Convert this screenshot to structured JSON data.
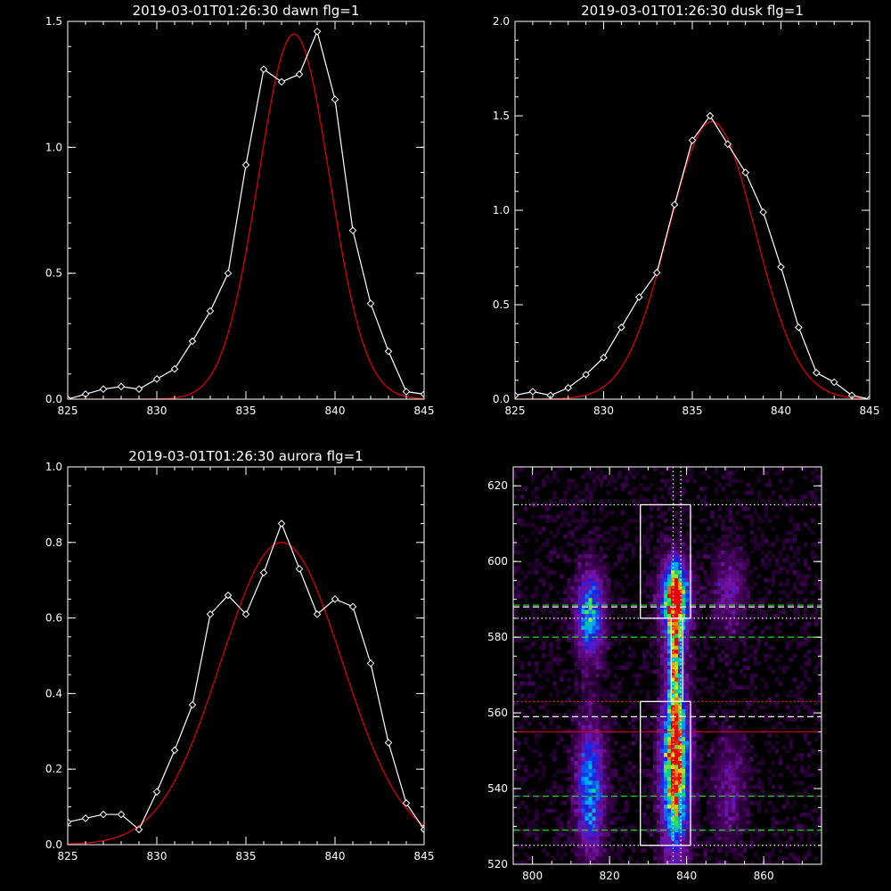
{
  "chart_data": [
    {
      "type": "line",
      "title": "2019-03-01T01:26:30 dawn flg=1",
      "xlabel": "",
      "ylabel": "",
      "xlim": [
        825,
        845
      ],
      "ylim": [
        0,
        1.5
      ],
      "xticks": [
        825,
        830,
        835,
        840,
        845
      ],
      "yticks": [
        0.0,
        0.5,
        1.0,
        1.5
      ],
      "xtick_labels": [
        "825",
        "830",
        "835",
        "840",
        "845"
      ],
      "ytick_labels": [
        "0.0",
        "0.5",
        "1.0",
        "1.5"
      ],
      "colors": {
        "data": "#ffffff",
        "fit": "#dd0000"
      },
      "series": [
        {
          "role": "data",
          "marker": "diamond",
          "x": [
            825,
            826,
            827,
            828,
            829,
            830,
            831,
            832,
            833,
            834,
            835,
            836,
            837,
            838,
            839,
            840,
            841,
            842,
            843,
            844,
            845
          ],
          "y": [
            0.0,
            0.02,
            0.04,
            0.05,
            0.04,
            0.08,
            0.12,
            0.23,
            0.35,
            0.5,
            0.93,
            1.31,
            1.26,
            1.29,
            1.46,
            1.19,
            0.67,
            0.38,
            0.19,
            0.03,
            0.02
          ]
        },
        {
          "role": "fit",
          "model": "gaussian",
          "amplitude": 1.45,
          "center": 837.7,
          "sigma": 2.0
        }
      ]
    },
    {
      "type": "line",
      "title": "2019-03-01T01:26:30 dusk flg=1",
      "xlabel": "",
      "ylabel": "",
      "xlim": [
        825,
        845
      ],
      "ylim": [
        0,
        2.0
      ],
      "xticks": [
        825,
        830,
        835,
        840,
        845
      ],
      "yticks": [
        0.0,
        0.5,
        1.0,
        1.5,
        2.0
      ],
      "xtick_labels": [
        "825",
        "830",
        "835",
        "840",
        "845"
      ],
      "ytick_labels": [
        "0.0",
        "0.5",
        "1.0",
        "1.5",
        "2.0"
      ],
      "colors": {
        "data": "#ffffff",
        "fit": "#dd0000"
      },
      "series": [
        {
          "role": "data",
          "marker": "diamond",
          "x": [
            825,
            826,
            827,
            828,
            829,
            830,
            831,
            832,
            833,
            834,
            835,
            836,
            837,
            838,
            839,
            840,
            841,
            842,
            843,
            844,
            845
          ],
          "y": [
            0.02,
            0.04,
            0.02,
            0.06,
            0.13,
            0.22,
            0.38,
            0.54,
            0.67,
            1.03,
            1.37,
            1.5,
            1.35,
            1.2,
            0.99,
            0.7,
            0.38,
            0.14,
            0.09,
            0.02,
            0.0
          ]
        },
        {
          "role": "fit",
          "model": "gaussian",
          "amplitude": 1.47,
          "center": 836.1,
          "sigma": 2.45
        }
      ]
    },
    {
      "type": "line",
      "title": "2019-03-01T01:26:30 aurora flg=1",
      "xlabel": "",
      "ylabel": "",
      "xlim": [
        825,
        845
      ],
      "ylim": [
        0,
        1.0
      ],
      "xticks": [
        825,
        830,
        835,
        840,
        845
      ],
      "yticks": [
        0.0,
        0.2,
        0.4,
        0.6,
        0.8,
        1.0
      ],
      "xtick_labels": [
        "825",
        "830",
        "835",
        "840",
        "845"
      ],
      "ytick_labels": [
        "0.0",
        "0.2",
        "0.4",
        "0.6",
        "0.8",
        "1.0"
      ],
      "colors": {
        "data": "#ffffff",
        "fit": "#dd0000"
      },
      "series": [
        {
          "role": "data",
          "marker": "diamond",
          "x": [
            825,
            826,
            827,
            828,
            829,
            830,
            831,
            832,
            833,
            834,
            835,
            836,
            837,
            838,
            839,
            840,
            841,
            842,
            843,
            844,
            845
          ],
          "y": [
            0.06,
            0.07,
            0.08,
            0.08,
            0.04,
            0.14,
            0.25,
            0.37,
            0.61,
            0.66,
            0.61,
            0.72,
            0.85,
            0.73,
            0.61,
            0.65,
            0.63,
            0.48,
            0.27,
            0.11,
            0.04
          ]
        },
        {
          "role": "fit",
          "model": "gaussian",
          "amplitude": 0.8,
          "center": 837.0,
          "sigma": 3.4
        }
      ]
    },
    {
      "type": "heatmap",
      "title": "",
      "xlabel": "",
      "ylabel": "",
      "xlim": [
        795,
        875
      ],
      "ylim": [
        520,
        625
      ],
      "xticks": [
        800,
        820,
        840,
        860
      ],
      "yticks": [
        520,
        540,
        560,
        580,
        600,
        620
      ],
      "xtick_labels": [
        "800",
        "820",
        "840",
        "860"
      ],
      "ytick_labels": [
        "520",
        "540",
        "560",
        "580",
        "600",
        "620"
      ],
      "colormap": "rainbow",
      "emission_blobs": [
        {
          "x": 815,
          "y": 586,
          "sx": 2.5,
          "sy": 8,
          "intensity": 0.6
        },
        {
          "x": 815,
          "y": 540,
          "sx": 2.5,
          "sy": 12,
          "intensity": 0.55
        },
        {
          "x": 837,
          "y": 590,
          "sx": 2.5,
          "sy": 7,
          "intensity": 1.0
        },
        {
          "x": 837,
          "y": 545,
          "sx": 2.5,
          "sy": 15,
          "intensity": 0.95
        },
        {
          "x": 837,
          "y": 573,
          "sx": 1.2,
          "sy": 12,
          "intensity": 0.6
        },
        {
          "x": 851,
          "y": 592,
          "sx": 3,
          "sy": 8,
          "intensity": 0.25
        },
        {
          "x": 851,
          "y": 540,
          "sx": 3,
          "sy": 10,
          "intensity": 0.22
        }
      ],
      "boxes": [
        {
          "x0": 828,
          "x1": 841,
          "y0": 585,
          "y1": 615,
          "color": "#ffffff"
        },
        {
          "x0": 828,
          "x1": 841,
          "y0": 525,
          "y1": 563,
          "color": "#ffffff"
        },
        {
          "x0": 836,
          "x1": 839,
          "y0": 563,
          "y1": 585,
          "color": "#ffffff"
        }
      ],
      "vlines": [
        {
          "x": 836.5,
          "style": "dotted",
          "color": "#ffffff"
        },
        {
          "x": 838.5,
          "style": "dotted",
          "color": "#ffffff"
        }
      ],
      "hlines": [
        {
          "y": 615,
          "style": "dotted",
          "color": "#ffffff"
        },
        {
          "y": 588.5,
          "style": "dashed",
          "color": "#22dd22"
        },
        {
          "y": 588,
          "style": "dashed",
          "color": "#ffffff"
        },
        {
          "y": 585,
          "style": "dotted",
          "color": "#ffffff"
        },
        {
          "y": 580,
          "style": "dashed",
          "color": "#22dd22"
        },
        {
          "y": 563,
          "style": "dotted",
          "color": "#ff2222"
        },
        {
          "y": 559,
          "style": "dashed",
          "color": "#ffffff"
        },
        {
          "y": 555,
          "style": "solid",
          "color": "#dd0000"
        },
        {
          "y": 538,
          "style": "dashed",
          "color": "#22dd22"
        },
        {
          "y": 529,
          "style": "dashed",
          "color": "#22dd22"
        },
        {
          "y": 525,
          "style": "dotted",
          "color": "#ffffff"
        }
      ]
    }
  ]
}
